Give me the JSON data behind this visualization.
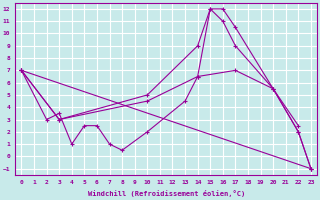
{
  "xlabel": "Windchill (Refroidissement éolien,°C)",
  "bg_color": "#c8eaea",
  "line_color": "#990099",
  "grid_color": "#ffffff",
  "xlim": [
    -0.5,
    23.5
  ],
  "ylim": [
    -1.5,
    12.5
  ],
  "xticks": [
    0,
    1,
    2,
    3,
    4,
    5,
    6,
    7,
    8,
    9,
    10,
    11,
    12,
    13,
    14,
    15,
    16,
    17,
    18,
    19,
    20,
    21,
    22,
    23
  ],
  "yticks": [
    -1,
    0,
    1,
    2,
    3,
    4,
    5,
    6,
    7,
    8,
    9,
    10,
    11,
    12
  ],
  "series": [
    {
      "x": [
        0,
        2,
        3,
        4,
        5,
        6,
        7,
        8,
        10,
        13,
        14,
        15,
        16,
        17,
        20,
        22
      ],
      "y": [
        7,
        3,
        3.5,
        1,
        2.5,
        2.5,
        1,
        0.5,
        2,
        4.5,
        6.5,
        12,
        12,
        10.5,
        5.5,
        2.5
      ]
    },
    {
      "x": [
        0,
        23
      ],
      "y": [
        7,
        -1
      ]
    },
    {
      "x": [
        0,
        3,
        10,
        14,
        17,
        20,
        22,
        23
      ],
      "y": [
        7,
        3,
        4.5,
        6.5,
        7,
        5.5,
        2,
        -1
      ]
    },
    {
      "x": [
        0,
        3,
        10,
        14,
        15,
        16,
        17,
        20,
        22,
        23
      ],
      "y": [
        7,
        3,
        5,
        9,
        12,
        11,
        9,
        5.5,
        2,
        -1
      ]
    }
  ]
}
